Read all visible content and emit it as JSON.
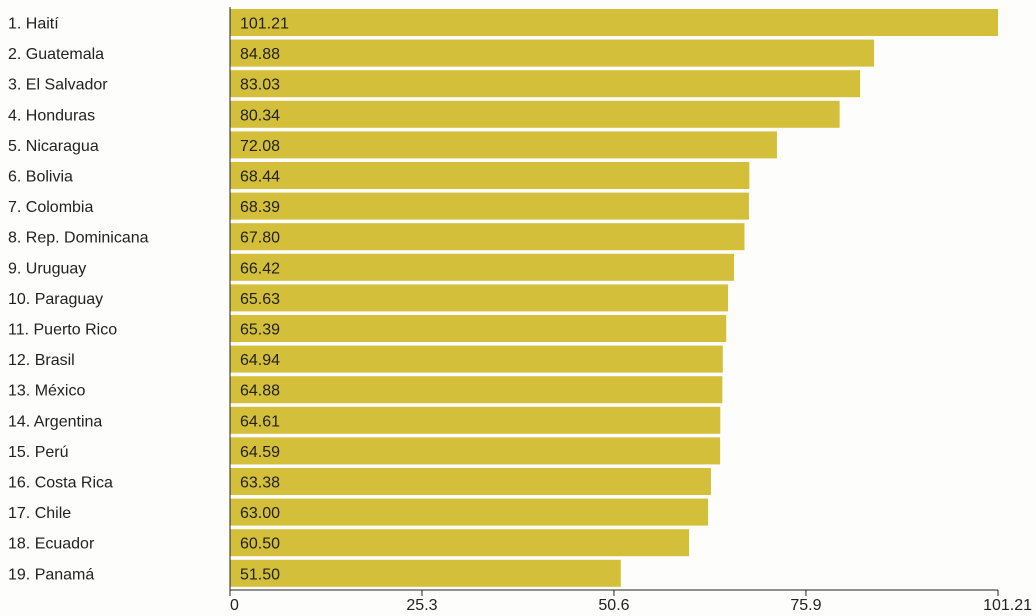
{
  "chart_data": {
    "type": "bar",
    "orientation": "horizontal",
    "categories": [
      "1. Haití",
      "2. Guatemala",
      "3. El Salvador",
      "4. Honduras",
      "5. Nicaragua",
      "6. Bolivia",
      "7. Colombia",
      "8. Rep. Dominicana",
      "9. Uruguay",
      "10. Paraguay",
      "11. Puerto Rico",
      "12. Brasil",
      "13. México",
      "14. Argentina",
      "15. Perú",
      "16. Costa Rica",
      "17. Chile",
      "18. Ecuador",
      "19. Panamá"
    ],
    "values": [
      101.21,
      84.88,
      83.03,
      80.34,
      72.08,
      68.44,
      68.39,
      67.8,
      66.42,
      65.63,
      65.39,
      64.94,
      64.88,
      64.61,
      64.59,
      63.38,
      63.0,
      60.5,
      51.5
    ],
    "value_labels": [
      "101.21",
      "84.88",
      "83.03",
      "80.34",
      "72.08",
      "68.44",
      "68.39",
      "67.80",
      "66.42",
      "65.63",
      "65.39",
      "64.94",
      "64.88",
      "64.61",
      "64.59",
      "63.38",
      "63.00",
      "60.50",
      "51.50"
    ],
    "x_ticks": [
      0,
      25.3,
      50.6,
      75.9,
      101.21
    ],
    "x_tick_labels": [
      "0",
      "25.3",
      "50.6",
      "75.9",
      "101.21"
    ],
    "xlim": [
      0,
      101.21
    ],
    "title": "",
    "xlabel": "",
    "ylabel": "",
    "grid": false,
    "bar_color": "#d4bf3b"
  }
}
